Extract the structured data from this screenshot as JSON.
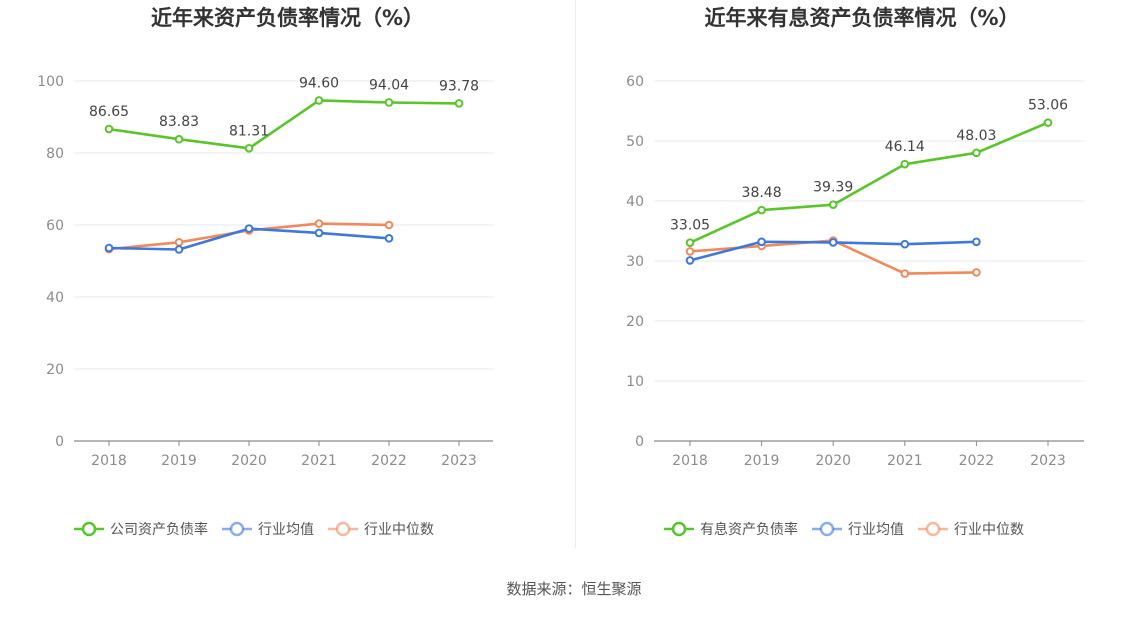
{
  "chart_data": [
    {
      "type": "line",
      "title": "近年来资产负债率情况（%）",
      "categories": [
        "2018",
        "2019",
        "2020",
        "2021",
        "2022",
        "2023"
      ],
      "ylim": [
        0,
        100
      ],
      "yticks": [
        "0",
        "20",
        "40",
        "60",
        "80",
        "100"
      ],
      "grid": true,
      "legend_position": "bottom",
      "series": [
        {
          "name": "公司资产负债率",
          "color": "#5ac52b",
          "values": [
            86.65,
            83.83,
            81.31,
            94.6,
            94.04,
            93.78
          ],
          "labels": [
            "86.65",
            "83.83",
            "81.31",
            "94.60",
            "94.04",
            "93.78"
          ]
        },
        {
          "name": "行业均值",
          "color": "#3e78dc",
          "values": [
            53.6,
            53.2,
            59.0,
            57.8,
            56.3,
            null
          ]
        },
        {
          "name": "行业中位数",
          "color": "#f08a5d",
          "values": [
            53.3,
            55.2,
            58.5,
            60.4,
            60.0,
            null
          ]
        }
      ]
    },
    {
      "type": "line",
      "title": "近年来有息资产负债率情况（%）",
      "categories": [
        "2018",
        "2019",
        "2020",
        "2021",
        "2022",
        "2023"
      ],
      "ylim": [
        0,
        60
      ],
      "yticks": [
        "0",
        "10",
        "20",
        "30",
        "40",
        "50",
        "60"
      ],
      "grid": true,
      "legend_position": "bottom",
      "series": [
        {
          "name": "有息资产负债率",
          "color": "#5ac52b",
          "values": [
            33.05,
            38.48,
            39.39,
            46.14,
            48.03,
            53.06
          ],
          "labels": [
            "33.05",
            "38.48",
            "39.39",
            "46.14",
            "48.03",
            "53.06"
          ]
        },
        {
          "name": "行业均值",
          "color": "#3e78dc",
          "values": [
            30.1,
            33.2,
            33.1,
            32.8,
            33.2,
            null
          ]
        },
        {
          "name": "行业中位数",
          "color": "#f08a5d",
          "values": [
            31.6,
            32.5,
            33.4,
            27.9,
            28.1,
            null
          ]
        }
      ]
    }
  ],
  "footer": {
    "source": "数据来源：恒生聚源"
  }
}
